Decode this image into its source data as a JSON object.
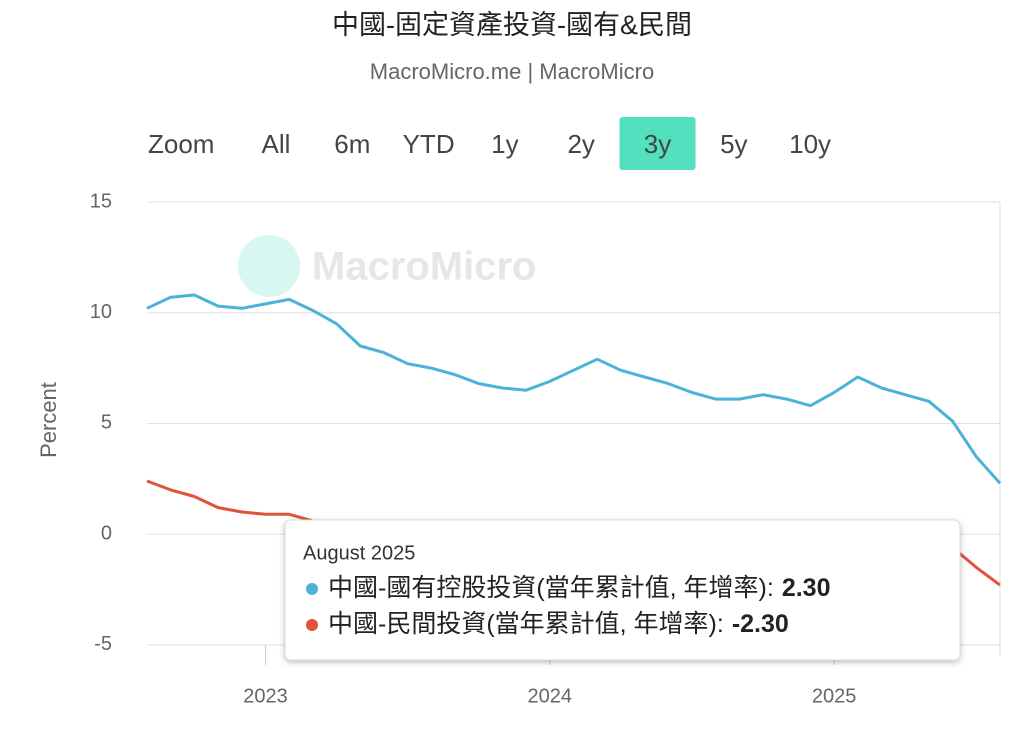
{
  "chart_data": {
    "type": "line",
    "title": "中國-固定資產投資-國有&民間",
    "subtitle": "MacroMicro.me | MacroMicro",
    "watermark": "MacroMicro",
    "range_selector": {
      "label": "Zoom",
      "buttons": [
        "All",
        "6m",
        "YTD",
        "1y",
        "2y",
        "3y",
        "5y",
        "10y"
      ],
      "active": 5
    },
    "y_label": "Percent",
    "x": [
      "2022-08",
      "2022-09",
      "2022-10",
      "2022-11",
      "2022-12",
      "2023-01",
      "2023-02",
      "2023-03",
      "2023-04",
      "2023-05",
      "2023-06",
      "2023-07",
      "2023-08",
      "2023-09",
      "2023-10",
      "2023-11",
      "2023-12",
      "2024-01",
      "2024-02",
      "2024-03",
      "2024-04",
      "2024-05",
      "2024-06",
      "2024-07",
      "2024-08",
      "2024-09",
      "2024-10",
      "2024-11",
      "2024-12",
      "2025-01",
      "2025-02",
      "2025-03",
      "2025-04",
      "2025-05",
      "2025-06",
      "2025-07",
      "2025-08"
    ],
    "series": [
      {
        "name": "中國-國有控股投資(當年累計值, 年增率)",
        "color": "#4bb3d8",
        "values": [
          10.2,
          10.7,
          10.8,
          10.3,
          10.2,
          10.4,
          10.6,
          10.1,
          9.5,
          8.5,
          8.2,
          7.7,
          7.5,
          7.2,
          6.8,
          6.6,
          6.5,
          6.9,
          7.4,
          7.9,
          7.4,
          7.1,
          6.8,
          6.4,
          6.1,
          6.1,
          6.3,
          6.1,
          5.8,
          6.4,
          7.1,
          6.6,
          6.3,
          6.0,
          5.1,
          3.5,
          2.3
        ]
      },
      {
        "name": "中國-民間投資(當年累計值, 年增率)",
        "color": "#e0533a",
        "values": [
          2.4,
          2.0,
          1.7,
          1.2,
          1.0,
          0.9,
          0.9,
          0.6,
          null,
          null,
          null,
          null,
          null,
          null,
          null,
          null,
          null,
          null,
          null,
          null,
          null,
          null,
          null,
          null,
          null,
          null,
          null,
          null,
          null,
          null,
          null,
          null,
          null,
          null,
          -0.6,
          -1.5,
          -2.3
        ]
      }
    ],
    "ylim": [
      -5.5,
      15
    ],
    "yticks": [
      -5,
      0,
      5,
      10,
      15
    ],
    "grid": true,
    "xticks": [
      {
        "value": "2023-01",
        "label": "2023"
      },
      {
        "value": "2024-01",
        "label": "2024"
      },
      {
        "value": "2025-01",
        "label": "2025"
      }
    ],
    "tooltip": {
      "title": "August 2025",
      "separator": ":",
      "value_labels": [
        "2.30",
        "-2.30"
      ]
    }
  }
}
